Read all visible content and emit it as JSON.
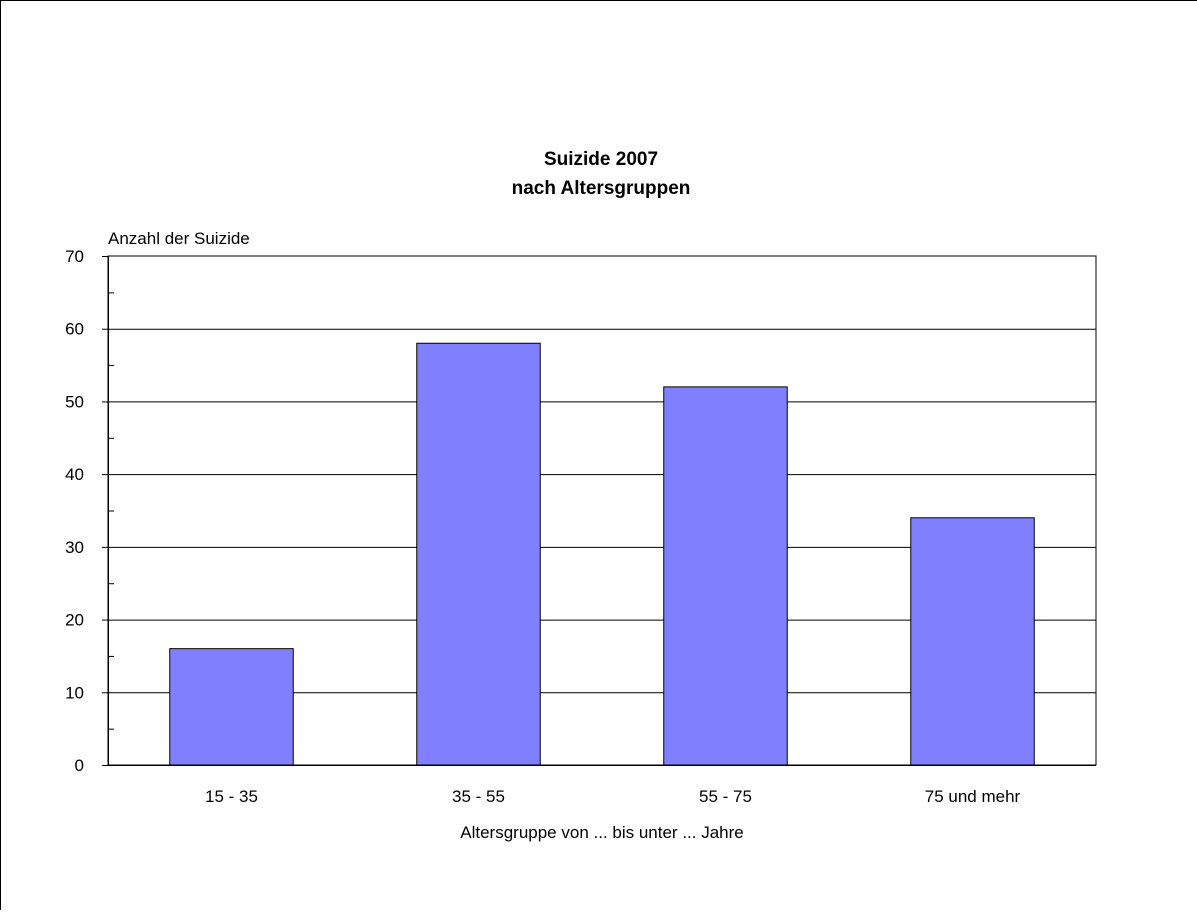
{
  "chart_data": {
    "type": "bar",
    "title": "Suizide 2007",
    "subtitle": "nach Altersgruppen",
    "xlabel": "Altersgruppe von ... bis unter ... Jahre",
    "ylabel": "Anzahl der Suizide",
    "categories": [
      "15 - 35",
      "35 - 55",
      "55 - 75",
      "75 und mehr"
    ],
    "values": [
      16,
      58,
      52,
      34
    ],
    "ylim": [
      0,
      70
    ],
    "yticks": [
      0,
      10,
      20,
      30,
      40,
      50,
      60,
      70
    ],
    "grid": true,
    "legend": "none",
    "bar_color": "#8080ff"
  }
}
